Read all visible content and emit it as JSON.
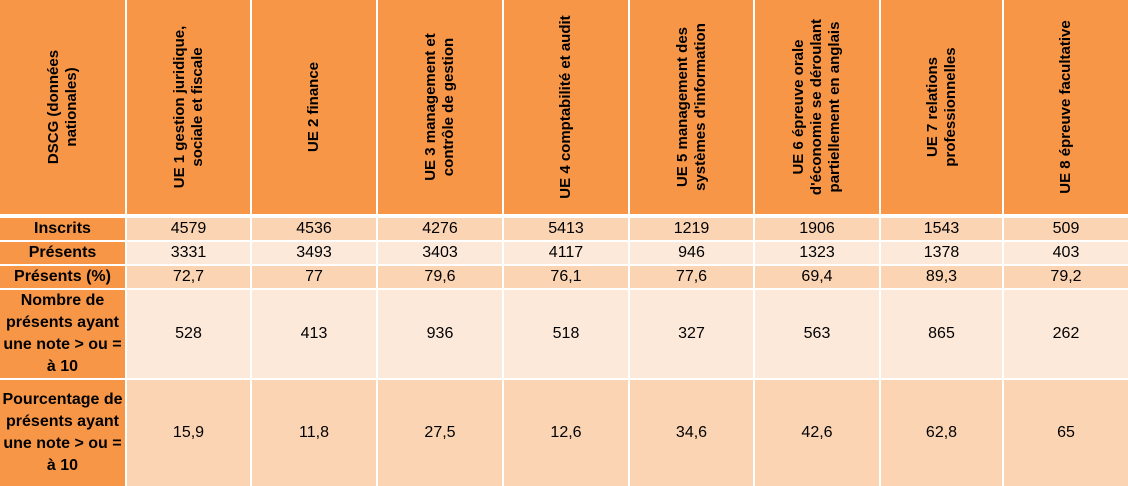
{
  "table": {
    "corner_header": "DSCG (données nationales)",
    "columns": [
      "UE 1 gestion juridique, sociale et fiscale",
      "UE 2 finance",
      "UE 3 management et contrôle de gestion",
      "UE 4 comptabilité et audit",
      "UE 5 management des systèmes d'information",
      "UE 6 épreuve orale d'économie se déroulant partiellement en anglais",
      "UE 7 relations professionnelles",
      "UE 8 épreuve facultative"
    ],
    "rows": [
      {
        "label": "Inscrits",
        "values": [
          "4579",
          "4536",
          "4276",
          "5413",
          "1219",
          "1906",
          "1543",
          "509"
        ]
      },
      {
        "label": "Présents",
        "values": [
          "3331",
          "3493",
          "3403",
          "4117",
          "946",
          "1323",
          "1378",
          "403"
        ]
      },
      {
        "label": "Présents (%)",
        "values": [
          "72,7",
          "77",
          "79,6",
          "76,1",
          "77,6",
          "69,4",
          "89,3",
          "79,2"
        ]
      },
      {
        "label": "Nombre de présents ayant une note > ou = à 10",
        "values": [
          "528",
          "413",
          "936",
          "518",
          "327",
          "563",
          "865",
          "262"
        ]
      },
      {
        "label": "Pourcentage de présents ayant une note > ou = à 10",
        "values": [
          "15,9",
          "11,8",
          "27,5",
          "12,6",
          "34,6",
          "42,6",
          "62,8",
          "65"
        ]
      }
    ]
  },
  "colors": {
    "header": "#f79646",
    "row_dark": "#fbd4b4",
    "row_light": "#fde9d9"
  }
}
